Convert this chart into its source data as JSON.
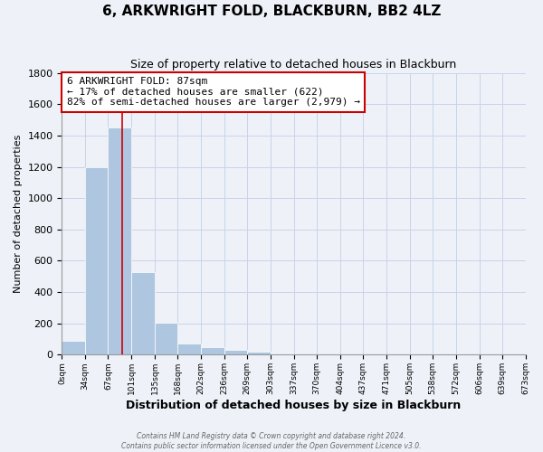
{
  "title": "6, ARKWRIGHT FOLD, BLACKBURN, BB2 4LZ",
  "subtitle": "Size of property relative to detached houses in Blackburn",
  "xlabel": "Distribution of detached houses by size in Blackburn",
  "ylabel": "Number of detached properties",
  "bar_edges": [
    0,
    34,
    67,
    101,
    135,
    168,
    202,
    236,
    269,
    303,
    337,
    370,
    404,
    437,
    471,
    505,
    538,
    572,
    606,
    639,
    673
  ],
  "bar_heights": [
    90,
    1200,
    1450,
    530,
    205,
    70,
    50,
    30,
    20,
    0,
    0,
    0,
    0,
    0,
    0,
    0,
    0,
    0,
    0,
    0
  ],
  "bar_color": "#aec6e0",
  "bar_edgecolor": "#aec6e0",
  "grid_color": "#c8d4e8",
  "background_color": "#eef2f8",
  "property_line_x": 87,
  "property_line_color": "#cc0000",
  "annotation_text": "6 ARKWRIGHT FOLD: 87sqm\n← 17% of detached houses are smaller (622)\n82% of semi-detached houses are larger (2,979) →",
  "annotation_box_color": "#cc0000",
  "ylim": [
    0,
    1800
  ],
  "yticks": [
    0,
    200,
    400,
    600,
    800,
    1000,
    1200,
    1400,
    1600,
    1800
  ],
  "xtick_labels": [
    "0sqm",
    "34sqm",
    "67sqm",
    "101sqm",
    "135sqm",
    "168sqm",
    "202sqm",
    "236sqm",
    "269sqm",
    "303sqm",
    "337sqm",
    "370sqm",
    "404sqm",
    "437sqm",
    "471sqm",
    "505sqm",
    "538sqm",
    "572sqm",
    "606sqm",
    "639sqm",
    "673sqm"
  ],
  "footer_line1": "Contains HM Land Registry data © Crown copyright and database right 2024.",
  "footer_line2": "Contains public sector information licensed under the Open Government Licence v3.0."
}
